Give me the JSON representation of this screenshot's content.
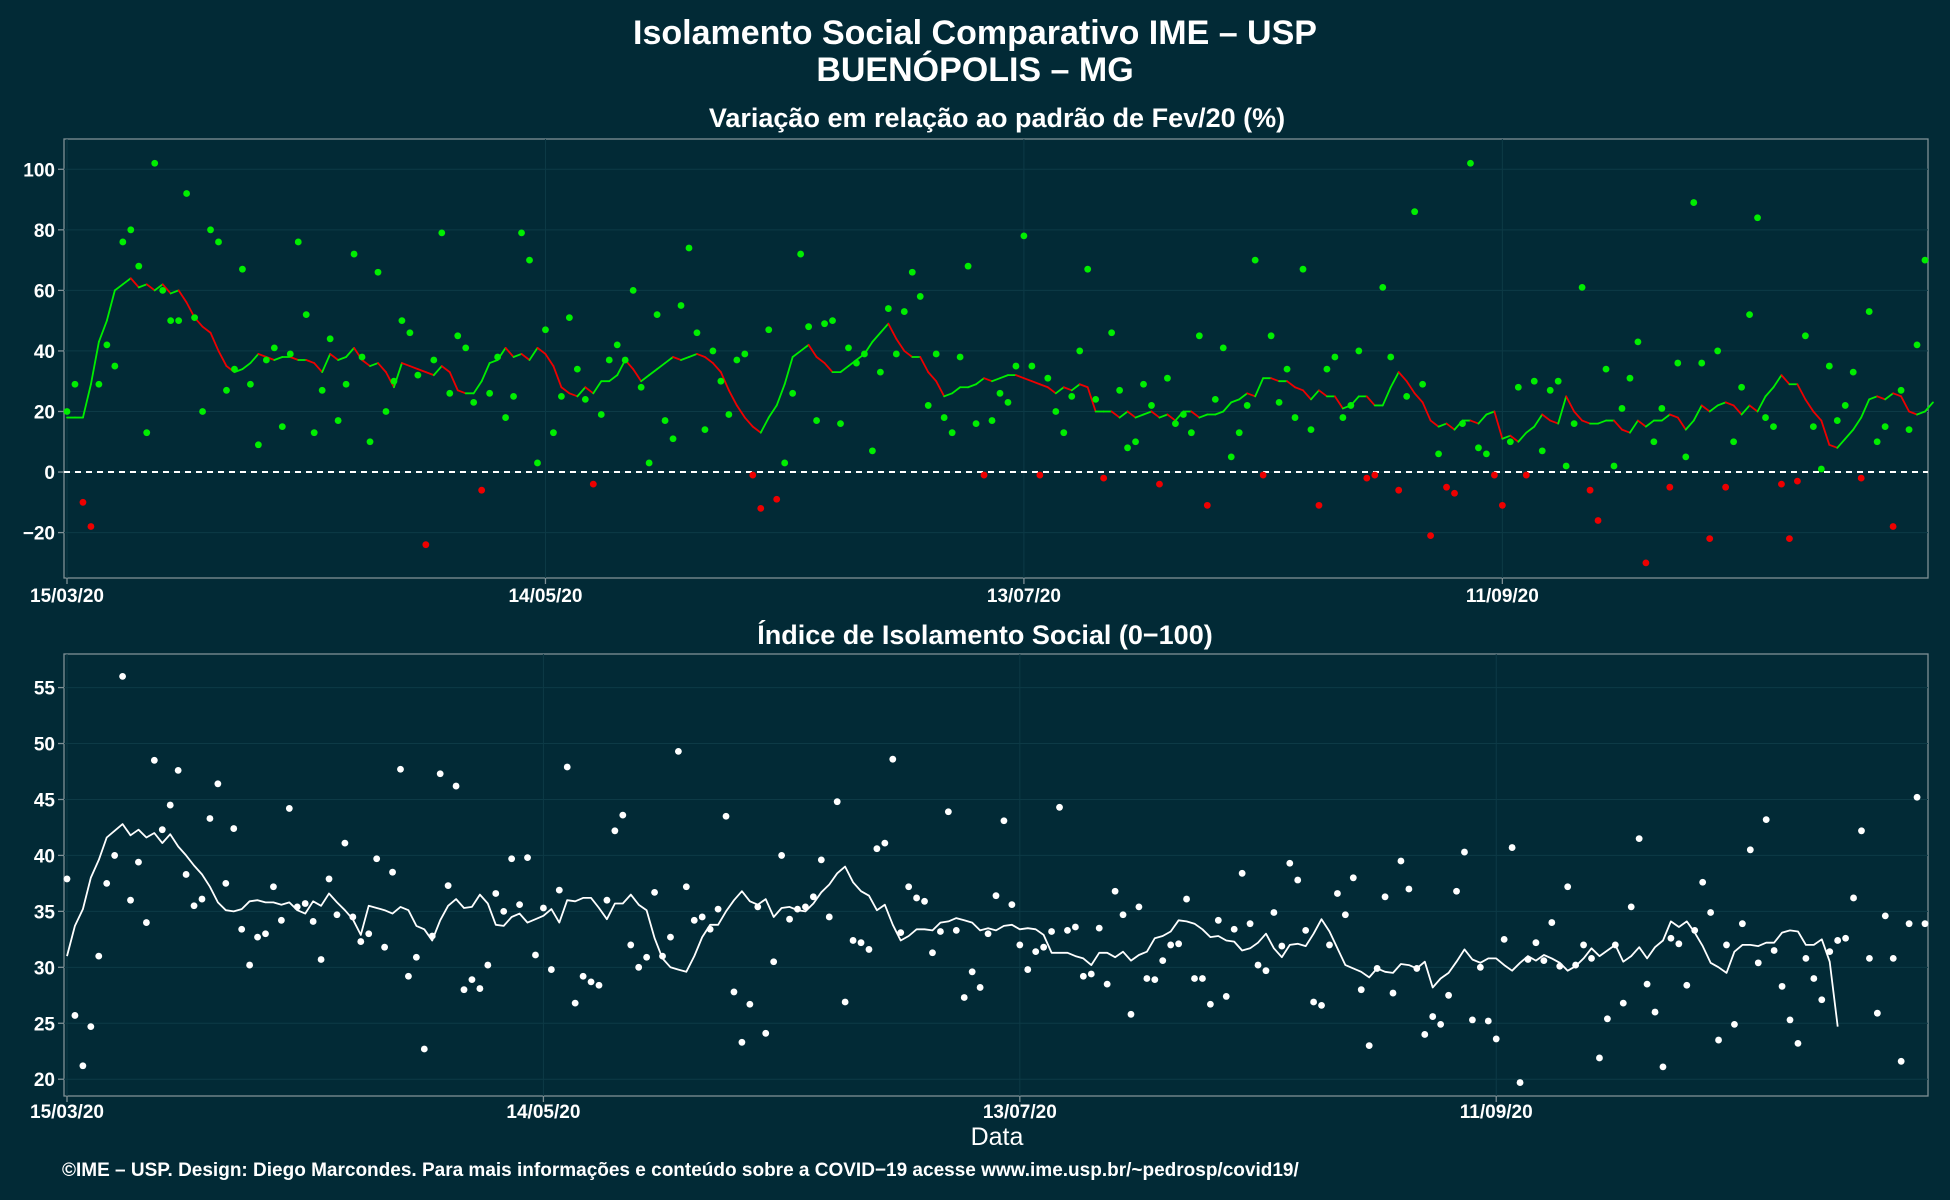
{
  "title_line1": "Isolamento Social Comparativo IME – USP",
  "title_line2": "BUENÓPOLIS – MG",
  "xlabel": "Data",
  "credit": "©IME – USP. Design: Diego Marcondes. Para mais informações e conteúdo sobre a COVID−19 acesse www.ime.usp.br/~pedrosp/covid19/",
  "colors": {
    "background": "#022a36",
    "positive": "#00ee00",
    "negative": "#ee0000",
    "index": "#ffffff",
    "frame": "#7f8f95",
    "zero_line": "#ffffff"
  },
  "chart_data": [
    {
      "type": "scatter",
      "title": "Variação em relação ao padrão de Fev/20 (%)",
      "xlabel": "",
      "ylabel": "",
      "x_start": "15/03/20",
      "x_end": "29/11/20",
      "x_ticks": [
        "15/03/20",
        "14/05/20",
        "13/07/20",
        "11/09/20"
      ],
      "ylim": [
        -35,
        110
      ],
      "y_ticks": [
        -20,
        0,
        20,
        40,
        60,
        80,
        100
      ],
      "reference_line": 0,
      "grid": true,
      "series": [
        {
          "role": "daily points (green when > 0, red when < 0)",
          "values": [
            20,
            29,
            -10,
            -18,
            29,
            42,
            35,
            76,
            80,
            68,
            13,
            102,
            60,
            50,
            50,
            92,
            51,
            20,
            80,
            76,
            27,
            34,
            67,
            29,
            9,
            37,
            41,
            15,
            39,
            76,
            52,
            13,
            27,
            44,
            17,
            29,
            72,
            38,
            10,
            66,
            20,
            30,
            50,
            46,
            32,
            -24,
            37,
            79,
            26,
            45,
            41,
            23,
            -6,
            26,
            38,
            18,
            25,
            79,
            70,
            3,
            47,
            13,
            25,
            51,
            34,
            24,
            -4,
            19,
            37,
            42,
            37,
            60,
            28,
            3,
            52,
            17,
            11,
            55,
            74,
            46,
            14,
            40,
            30,
            19,
            37,
            39,
            -1,
            -12,
            47,
            -9,
            3,
            26,
            72,
            48,
            17,
            49,
            50,
            16,
            41,
            36,
            39,
            7,
            33,
            54,
            39,
            53,
            66,
            58,
            22,
            39,
            18,
            13,
            38,
            68,
            16,
            -1,
            17,
            26,
            23,
            35,
            78,
            35,
            -1,
            31,
            20,
            13,
            25,
            40,
            67,
            24,
            -2,
            46,
            27,
            8,
            10,
            29,
            22,
            -4,
            31,
            16,
            19,
            13,
            45,
            -11,
            24,
            41,
            5,
            13,
            22,
            70,
            -1,
            45,
            23,
            34,
            18,
            67,
            14,
            -11,
            34,
            38,
            18,
            22,
            40,
            -2,
            -1,
            61,
            38,
            -6,
            25,
            86,
            29,
            -21,
            6,
            -5,
            -7,
            16,
            102,
            8,
            6,
            -1,
            -11,
            10,
            28,
            -1,
            30,
            7,
            27,
            30,
            2,
            16,
            61,
            -6,
            -16,
            34,
            2,
            21,
            31,
            43,
            -30,
            10,
            21,
            -5,
            36,
            5,
            89,
            36,
            -22,
            40,
            -5,
            10,
            28,
            52,
            84,
            18,
            15,
            -4,
            -22,
            -3,
            45,
            15,
            1,
            35,
            17,
            22,
            33,
            -2,
            53,
            10,
            15,
            -18,
            27,
            14,
            42,
            70
          ]
        },
        {
          "role": "7-day moving average",
          "values": [
            18,
            18,
            18,
            29,
            43,
            50,
            60,
            62,
            64,
            61,
            62,
            60,
            62,
            59,
            60,
            56,
            51,
            48,
            46,
            40,
            35,
            33,
            34,
            36,
            39,
            38,
            37,
            38,
            38,
            37,
            37,
            36,
            33,
            39,
            37,
            38,
            41,
            37,
            35,
            36,
            33,
            28,
            36,
            35,
            34,
            33,
            32,
            35,
            33,
            27,
            26,
            26,
            30,
            36,
            37,
            41,
            38,
            39,
            37,
            41,
            39,
            35,
            28,
            26,
            25,
            28,
            26,
            30,
            30,
            32,
            37,
            34,
            30,
            32,
            34,
            36,
            38,
            37,
            38,
            39,
            38,
            36,
            33,
            27,
            22,
            18,
            15,
            13,
            18,
            22,
            29,
            38,
            40,
            42,
            38,
            36,
            33,
            33,
            35,
            37,
            39,
            43,
            46,
            49,
            44,
            40,
            38,
            38,
            33,
            30,
            25,
            26,
            28,
            28,
            29,
            31,
            30,
            31,
            32,
            32,
            31,
            30,
            29,
            28,
            26,
            28,
            27,
            29,
            28,
            20,
            20,
            20,
            18,
            20,
            18,
            19,
            20,
            18,
            19,
            17,
            20,
            20,
            18,
            19,
            19,
            20,
            23,
            24,
            26,
            25,
            31,
            31,
            30,
            30,
            28,
            27,
            24,
            27,
            25,
            25,
            21,
            22,
            25,
            25,
            22,
            22,
            28,
            33,
            30,
            26,
            23,
            17,
            15,
            16,
            14,
            17,
            17,
            16,
            19,
            20,
            11,
            12,
            10,
            13,
            15,
            19,
            17,
            16,
            25,
            20,
            17,
            16,
            16,
            17,
            17,
            14,
            13,
            17,
            15,
            17,
            17,
            19,
            18,
            14,
            17,
            22,
            20,
            22,
            23,
            22,
            19,
            22,
            20,
            25,
            28,
            32,
            29,
            29,
            24,
            20,
            17,
            9,
            8,
            11,
            14,
            18,
            24,
            25,
            24,
            26,
            25,
            20,
            19,
            20,
            23
          ]
        }
      ]
    },
    {
      "type": "scatter",
      "title": "Índice de Isolamento Social (0−100)",
      "xlabel": "Data",
      "ylabel": "",
      "x_start": "15/03/20",
      "x_end": "29/11/20",
      "x_ticks": [
        "15/03/20",
        "14/05/20",
        "13/07/20",
        "11/09/20"
      ],
      "ylim": [
        18.5,
        58
      ],
      "y_ticks": [
        20,
        25,
        30,
        35,
        40,
        45,
        50,
        55
      ],
      "grid": true,
      "series": [
        {
          "role": "daily points",
          "values": [
            37.9,
            25.7,
            21.2,
            24.7,
            31,
            37.5,
            40,
            56,
            36,
            39.4,
            34,
            48.5,
            42.3,
            44.5,
            47.6,
            38.3,
            35.5,
            36.1,
            43.3,
            46.4,
            37.5,
            42.4,
            33.4,
            30.2,
            32.7,
            33,
            37.2,
            34.2,
            44.2,
            35.4,
            35.7,
            34.1,
            30.7,
            37.9,
            34.7,
            41.1,
            34.5,
            32.3,
            33,
            39.7,
            31.8,
            38.5,
            47.7,
            29.2,
            30.9,
            22.7,
            32.8,
            47.3,
            37.3,
            46.2,
            28,
            28.9,
            28.1,
            30.2,
            36.6,
            35,
            39.7,
            35.6,
            39.8,
            31.1,
            35.3,
            29.8,
            36.9,
            47.9,
            26.8,
            29.2,
            28.7,
            28.4,
            36,
            42.2,
            43.6,
            32,
            30,
            30.9,
            36.7,
            31,
            32.7,
            49.3,
            37.2,
            34.2,
            34.5,
            33.4,
            35.2,
            43.5,
            27.8,
            23.3,
            26.7,
            35.4,
            24.1,
            30.5,
            40,
            34.3,
            35.2,
            35.4,
            36.3,
            39.6,
            34.5,
            44.8,
            26.9,
            32.4,
            32.2,
            31.6,
            40.6,
            41.1,
            48.6,
            33.1,
            37.2,
            36.2,
            35.9,
            31.3,
            33.2,
            43.9,
            33.3,
            27.3,
            29.6,
            28.2,
            33,
            36.4,
            43.1,
            35.6,
            32,
            29.8,
            31.4,
            31.8,
            33.2,
            44.3,
            33.3,
            33.6,
            29.2,
            29.4,
            33.5,
            28.5,
            36.8,
            34.7,
            25.8,
            35.4,
            29,
            28.9,
            30.6,
            32,
            32.1,
            36.1,
            29,
            29,
            26.7,
            34.2,
            27.4,
            33.4,
            38.4,
            33.9,
            30.2,
            29.7,
            34.9,
            31.9,
            39.3,
            37.8,
            33.3,
            26.9,
            26.6,
            32,
            36.6,
            34.7,
            38,
            28,
            23,
            29.9,
            36.3,
            27.7,
            39.5,
            37,
            29.9,
            24,
            25.6,
            24.9,
            27.5,
            36.8,
            40.3,
            25.3,
            30,
            25.2,
            23.6,
            32.5,
            40.7,
            19.7,
            30.7,
            32.2,
            30.6,
            34,
            30.1,
            37.2,
            30.2,
            32,
            30.8,
            21.9,
            25.4,
            32,
            26.8,
            35.4,
            41.5,
            28.5,
            26,
            21.1,
            32.6,
            32.1,
            28.4,
            33.3,
            37.6,
            34.9,
            23.5,
            32,
            24.9,
            33.9,
            40.5,
            30.4,
            43.2,
            31.5,
            28.3,
            25.3,
            23.2,
            30.8,
            29,
            27.1,
            31.4,
            32.4,
            32.6,
            36.2,
            42.2,
            30.8,
            25.9,
            34.6,
            30.8,
            21.6,
            33.9,
            45.2,
            33.9
          ]
        },
        {
          "role": "7-day moving average",
          "values": [
            31,
            33.7,
            35.2,
            38,
            39.6,
            41.6,
            42.2,
            42.8,
            41.8,
            42.3,
            41.6,
            42,
            41.1,
            41.9,
            40.8,
            40,
            39.1,
            38.3,
            37.2,
            35.8,
            35.1,
            35,
            35.2,
            35.9,
            36,
            35.8,
            35.8,
            35.6,
            35.8,
            35.1,
            34.8,
            35.9,
            35.5,
            36.6,
            35.8,
            35.1,
            34.3,
            32.9,
            35.5,
            35.3,
            35.1,
            34.8,
            35.4,
            35.1,
            33.7,
            33.4,
            32.4,
            34.2,
            35.5,
            36.1,
            35.3,
            35.4,
            36.5,
            35.7,
            33.8,
            33.7,
            34.5,
            34.8,
            34,
            34.3,
            34.6,
            35.2,
            34,
            36,
            35.9,
            36.2,
            36.2,
            35.3,
            34.3,
            35.7,
            35.7,
            36.5,
            35.6,
            35.1,
            32.6,
            30.8,
            30,
            29.8,
            29.6,
            31,
            32.7,
            33.8,
            33.8,
            35,
            36,
            36.8,
            35.9,
            35.6,
            36.1,
            34.5,
            35.3,
            35.4,
            35.1,
            35,
            35.7,
            36.7,
            37.4,
            38.4,
            39,
            37.6,
            36.8,
            36.4,
            35.1,
            35.6,
            33.8,
            32.4,
            32.8,
            33.4,
            33.4,
            33.3,
            34,
            34.1,
            34.4,
            34.2,
            34,
            33.3,
            33.5,
            33.3,
            33.7,
            33.8,
            33.4,
            33.5,
            33.4,
            32.9,
            31.3,
            31.3,
            31.3,
            31,
            30.8,
            30.2,
            31.3,
            31.3,
            30.9,
            31.4,
            30.6,
            31.1,
            31.4,
            32.6,
            32.8,
            33.2,
            34.2,
            34.1,
            33.9,
            33.4,
            32.7,
            32.8,
            32.4,
            32.3,
            31.5,
            31.7,
            32.2,
            33,
            31.7,
            30.9,
            32,
            32.1,
            31.9,
            33,
            34.3,
            33.2,
            31.7,
            30.2,
            29.9,
            29.6,
            29.1,
            29.9,
            29.6,
            29.5,
            30.3,
            30.2,
            29.9,
            30.5,
            28.2,
            29,
            29.5,
            30.5,
            31.6,
            30.7,
            30.4,
            30.8,
            30.8,
            30.2,
            29.7,
            30.4,
            31,
            30.6,
            31.1,
            30.8,
            30.4,
            29.7,
            30.1,
            30.8,
            31.7,
            31,
            31.5,
            32,
            30.5,
            31,
            31.8,
            30.8,
            31.8,
            32.4,
            34.1,
            33.6,
            34.1,
            33.1,
            31.9,
            30.4,
            30,
            29.5,
            31.4,
            32,
            32,
            31.9,
            32.2,
            32.2,
            33.1,
            33.3,
            33.2,
            32,
            32,
            32.5,
            30.5,
            24.7
          ]
        }
      ]
    }
  ]
}
